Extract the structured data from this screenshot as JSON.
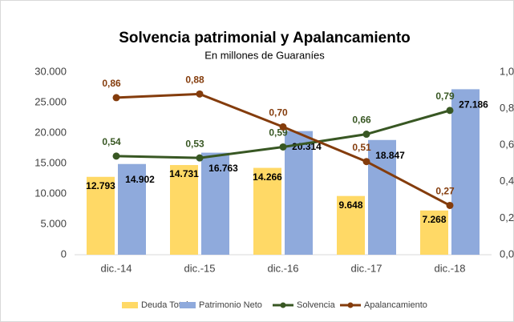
{
  "chart_data": {
    "type": "combo",
    "title": "Solvencia patrimonial y Apalancamiento",
    "subtitle": "En millones de Guaraníes",
    "categories": [
      "dic.-14",
      "dic.-15",
      "dic.-16",
      "dic.-17",
      "dic.-18"
    ],
    "ylim": [
      0,
      30000
    ],
    "yticks": [
      0,
      {
        "value": 5000,
        "label": "5.000"
      },
      {
        "value": 10000,
        "label": "10.000"
      },
      {
        "value": 15000,
        "label": "15.000"
      },
      {
        "value": 20000,
        "label": "20.000"
      },
      {
        "value": 25000,
        "label": "25.000"
      },
      {
        "value": 30000,
        "label": "30.000"
      }
    ],
    "y2lim": [
      0,
      1
    ],
    "y2ticks": [
      {
        "value": 0,
        "label": "0,0"
      },
      {
        "value": 0.2,
        "label": "0,2"
      },
      {
        "value": 0.4,
        "label": "0,4"
      },
      {
        "value": 0.6,
        "label": "0,6"
      },
      {
        "value": 0.8,
        "label": "0,8"
      },
      {
        "value": 1,
        "label": "1,0"
      }
    ],
    "legend": "bottom",
    "series": [
      {
        "name": "Deuda Total",
        "type": "bar",
        "color": "#ffd966",
        "values": [
          12793,
          14731,
          14266,
          9648,
          7268
        ],
        "value_labels": [
          "12.793",
          "14.731",
          "14.266",
          "9.648",
          "7.268"
        ]
      },
      {
        "name": "Patrimonio Neto",
        "type": "bar",
        "color": "#8faadc",
        "values": [
          14902,
          16763,
          20314,
          18847,
          27186
        ],
        "value_labels": [
          "14.902",
          "16.763",
          "20.314",
          "18.847",
          "27.186"
        ]
      },
      {
        "name": "Solvencia",
        "type": "line",
        "axis": "y2",
        "color": "#385723",
        "values": [
          0.54,
          0.53,
          0.59,
          0.66,
          0.79
        ],
        "value_labels": [
          "0,54",
          "0,53",
          "0,59",
          "0,66",
          "0,79"
        ]
      },
      {
        "name": "Apalancamiento",
        "type": "line",
        "axis": "y2",
        "color": "#843c0c",
        "values": [
          0.86,
          0.88,
          0.7,
          0.51,
          0.27
        ],
        "value_labels": [
          "0,86",
          "0,88",
          "0,70",
          "0,51",
          "0,27"
        ]
      }
    ]
  }
}
